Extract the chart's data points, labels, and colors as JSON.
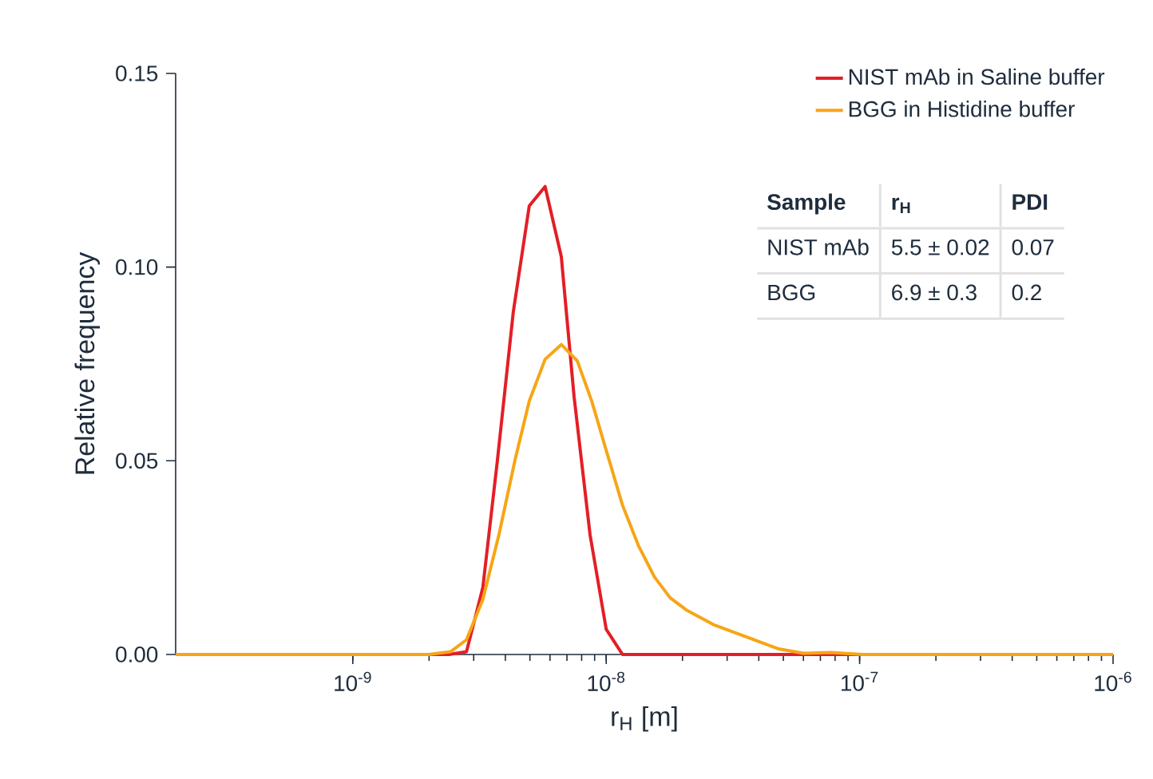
{
  "chart_data": {
    "type": "line",
    "xlabel": "r$_{H}$ [m]",
    "ylabel": "Relative frequency",
    "log": "x",
    "xlim": [
      2e-10,
      1e-06
    ],
    "ylim": [
      0,
      0.15
    ],
    "xticks": [
      {
        "value": 1e-09,
        "label": "10$^{-9}$"
      },
      {
        "value": 1e-08,
        "label": "10$^{-8}$"
      },
      {
        "value": 1e-07,
        "label": "10$^{-7}$"
      },
      {
        "value": 1e-06,
        "label": "10$^{-6}$"
      }
    ],
    "yticks": [
      {
        "value": 0,
        "label": "0.00"
      },
      {
        "value": 0.05,
        "label": "0.05"
      },
      {
        "value": 0.1,
        "label": "0.10"
      },
      {
        "value": 0.15,
        "label": "0.15"
      }
    ],
    "legend": "top right",
    "grid": false,
    "line_style": "solid",
    "marker": "none",
    "series": [
      {
        "name": "NIST mAb in Saline buffer",
        "color": "#e41e26",
        "x": [
          2e-10,
          2.4e-09,
          2.81e-09,
          3.26e-09,
          3.72e-09,
          4.3e-09,
          4.97e-09,
          5.74e-09,
          6.65e-09,
          7.47e-09,
          8.64e-09,
          1e-08,
          1.16e-08,
          1e-06
        ],
        "values": [
          0,
          0,
          0.0007,
          0.0173,
          0.05,
          0.0885,
          0.1158,
          0.1208,
          0.1027,
          0.0665,
          0.0308,
          0.0065,
          0,
          0
        ]
      },
      {
        "name": "BGG in Histidine buffer",
        "color": "#f7a516",
        "x": [
          2e-10,
          2e-09,
          2.43e-09,
          2.81e-09,
          3.26e-09,
          3.77e-09,
          4.36e-09,
          4.97e-09,
          5.74e-09,
          6.65e-09,
          7.69e-09,
          8.77e-09,
          1e-08,
          1.16e-08,
          1.34e-08,
          1.55e-08,
          1.79e-08,
          2.07e-08,
          2.65e-08,
          3.55e-08,
          4.75e-08,
          6e-08,
          7.69e-08,
          1.03e-07,
          1e-06
        ],
        "values": [
          0,
          0,
          0.0007,
          0.0038,
          0.0142,
          0.0308,
          0.05,
          0.0654,
          0.0762,
          0.08,
          0.0758,
          0.0654,
          0.0527,
          0.0385,
          0.0281,
          0.02,
          0.0146,
          0.0115,
          0.0077,
          0.0046,
          0.0015,
          0.0003,
          0.0005,
          0,
          0
        ]
      }
    ],
    "annotations": [
      "Sample",
      "r$_{H}$",
      "PDI",
      "NIST mAb",
      "5.5 ± 0.02",
      "0.07",
      "BGG",
      "6.9 ± 0.3",
      "0.2"
    ]
  }
}
